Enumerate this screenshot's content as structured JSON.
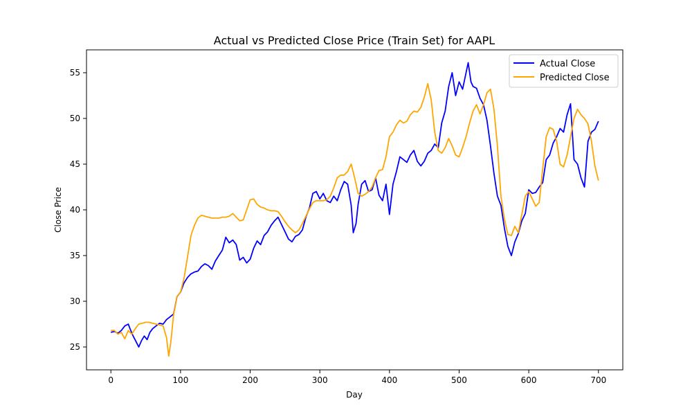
{
  "chart_data": {
    "type": "line",
    "title": "Actual vs Predicted Close Price (Train Set) for AAPL",
    "xlabel": "Day",
    "ylabel": "Close Price",
    "xlim": [
      -35,
      735
    ],
    "ylim": [
      22.5,
      57.5
    ],
    "x_ticks": [
      0,
      100,
      200,
      300,
      400,
      500,
      600,
      700
    ],
    "y_ticks": [
      25,
      30,
      35,
      40,
      45,
      50,
      55
    ],
    "grid": false,
    "legend_position": "top-right",
    "series": [
      {
        "name": "Actual Close",
        "color": "#0000ff",
        "points": [
          [
            0,
            26.6
          ],
          [
            5,
            26.7
          ],
          [
            10,
            26.5
          ],
          [
            15,
            26.8
          ],
          [
            20,
            27.3
          ],
          [
            25,
            27.5
          ],
          [
            28,
            26.9
          ],
          [
            32,
            26.2
          ],
          [
            36,
            25.6
          ],
          [
            40,
            25.0
          ],
          [
            44,
            25.7
          ],
          [
            48,
            26.2
          ],
          [
            52,
            25.8
          ],
          [
            56,
            26.6
          ],
          [
            60,
            27.0
          ],
          [
            65,
            27.3
          ],
          [
            70,
            27.6
          ],
          [
            75,
            27.5
          ],
          [
            80,
            28.0
          ],
          [
            85,
            28.3
          ],
          [
            90,
            28.6
          ],
          [
            95,
            30.5
          ],
          [
            100,
            31.0
          ],
          [
            105,
            32.0
          ],
          [
            110,
            32.6
          ],
          [
            115,
            33.0
          ],
          [
            120,
            33.2
          ],
          [
            125,
            33.3
          ],
          [
            130,
            33.8
          ],
          [
            135,
            34.1
          ],
          [
            140,
            33.9
          ],
          [
            145,
            33.5
          ],
          [
            150,
            34.4
          ],
          [
            155,
            35.0
          ],
          [
            160,
            35.6
          ],
          [
            165,
            37.0
          ],
          [
            170,
            36.4
          ],
          [
            175,
            36.7
          ],
          [
            180,
            36.2
          ],
          [
            185,
            34.5
          ],
          [
            190,
            34.8
          ],
          [
            195,
            34.2
          ],
          [
            200,
            34.6
          ],
          [
            205,
            35.8
          ],
          [
            210,
            36.6
          ],
          [
            215,
            36.2
          ],
          [
            220,
            37.2
          ],
          [
            225,
            37.6
          ],
          [
            230,
            38.3
          ],
          [
            235,
            38.8
          ],
          [
            240,
            39.2
          ],
          [
            245,
            38.4
          ],
          [
            250,
            37.6
          ],
          [
            255,
            36.8
          ],
          [
            260,
            36.5
          ],
          [
            265,
            37.1
          ],
          [
            270,
            37.3
          ],
          [
            275,
            37.8
          ],
          [
            280,
            39.2
          ],
          [
            285,
            40.2
          ],
          [
            290,
            41.8
          ],
          [
            295,
            42.0
          ],
          [
            300,
            41.2
          ],
          [
            305,
            41.8
          ],
          [
            310,
            41.0
          ],
          [
            315,
            40.8
          ],
          [
            320,
            41.5
          ],
          [
            325,
            41.0
          ],
          [
            330,
            42.2
          ],
          [
            335,
            43.1
          ],
          [
            340,
            42.8
          ],
          [
            345,
            40.5
          ],
          [
            348,
            37.5
          ],
          [
            352,
            38.5
          ],
          [
            355,
            40.6
          ],
          [
            360,
            42.8
          ],
          [
            365,
            43.2
          ],
          [
            370,
            42.0
          ],
          [
            375,
            42.2
          ],
          [
            380,
            43.5
          ],
          [
            385,
            41.6
          ],
          [
            390,
            41.0
          ],
          [
            395,
            42.8
          ],
          [
            400,
            39.5
          ],
          [
            405,
            42.8
          ],
          [
            410,
            44.2
          ],
          [
            415,
            45.8
          ],
          [
            420,
            45.5
          ],
          [
            425,
            45.2
          ],
          [
            430,
            46.0
          ],
          [
            435,
            46.5
          ],
          [
            440,
            45.3
          ],
          [
            445,
            44.8
          ],
          [
            450,
            45.3
          ],
          [
            455,
            46.2
          ],
          [
            460,
            46.5
          ],
          [
            465,
            47.2
          ],
          [
            470,
            46.8
          ],
          [
            475,
            49.5
          ],
          [
            480,
            50.8
          ],
          [
            485,
            53.5
          ],
          [
            490,
            55.0
          ],
          [
            495,
            52.5
          ],
          [
            500,
            54.0
          ],
          [
            505,
            53.2
          ],
          [
            510,
            55.0
          ],
          [
            513,
            56.1
          ],
          [
            517,
            54.0
          ],
          [
            520,
            53.5
          ],
          [
            525,
            53.3
          ],
          [
            530,
            52.2
          ],
          [
            535,
            51.5
          ],
          [
            540,
            49.8
          ],
          [
            545,
            47.0
          ],
          [
            550,
            44.0
          ],
          [
            555,
            41.5
          ],
          [
            560,
            40.5
          ],
          [
            565,
            38.0
          ],
          [
            570,
            36.0
          ],
          [
            575,
            35.0
          ],
          [
            580,
            36.5
          ],
          [
            585,
            37.4
          ],
          [
            590,
            38.8
          ],
          [
            595,
            39.6
          ],
          [
            600,
            42.2
          ],
          [
            605,
            41.8
          ],
          [
            610,
            41.9
          ],
          [
            615,
            42.5
          ],
          [
            620,
            43.0
          ],
          [
            625,
            45.5
          ],
          [
            630,
            46.0
          ],
          [
            635,
            47.3
          ],
          [
            640,
            48.0
          ],
          [
            645,
            48.9
          ],
          [
            650,
            48.5
          ],
          [
            655,
            50.4
          ],
          [
            660,
            51.6
          ],
          [
            665,
            45.5
          ],
          [
            670,
            45.0
          ],
          [
            675,
            43.5
          ],
          [
            680,
            42.5
          ],
          [
            685,
            47.5
          ],
          [
            690,
            48.5
          ],
          [
            695,
            48.8
          ],
          [
            700,
            49.7
          ]
        ]
      },
      {
        "name": "Predicted Close",
        "color": "#ffa500",
        "points": [
          [
            0,
            26.8
          ],
          [
            5,
            26.8
          ],
          [
            10,
            26.4
          ],
          [
            15,
            26.6
          ],
          [
            20,
            25.9
          ],
          [
            25,
            26.8
          ],
          [
            30,
            26.4
          ],
          [
            35,
            27.0
          ],
          [
            40,
            27.5
          ],
          [
            45,
            27.6
          ],
          [
            50,
            27.7
          ],
          [
            55,
            27.7
          ],
          [
            60,
            27.6
          ],
          [
            65,
            27.5
          ],
          [
            70,
            27.4
          ],
          [
            75,
            27.3
          ],
          [
            80,
            26.0
          ],
          [
            83,
            24.0
          ],
          [
            86,
            25.5
          ],
          [
            90,
            28.5
          ],
          [
            95,
            30.5
          ],
          [
            100,
            31.0
          ],
          [
            105,
            32.5
          ],
          [
            110,
            34.8
          ],
          [
            115,
            37.2
          ],
          [
            120,
            38.3
          ],
          [
            125,
            39.1
          ],
          [
            130,
            39.4
          ],
          [
            135,
            39.3
          ],
          [
            140,
            39.2
          ],
          [
            145,
            39.1
          ],
          [
            150,
            39.1
          ],
          [
            155,
            39.1
          ],
          [
            160,
            39.2
          ],
          [
            165,
            39.2
          ],
          [
            170,
            39.3
          ],
          [
            175,
            39.6
          ],
          [
            180,
            39.2
          ],
          [
            185,
            38.8
          ],
          [
            190,
            38.9
          ],
          [
            195,
            40.0
          ],
          [
            200,
            41.1
          ],
          [
            205,
            41.2
          ],
          [
            210,
            40.6
          ],
          [
            215,
            40.3
          ],
          [
            220,
            40.2
          ],
          [
            225,
            40.0
          ],
          [
            230,
            39.9
          ],
          [
            235,
            39.9
          ],
          [
            240,
            39.8
          ],
          [
            245,
            39.3
          ],
          [
            250,
            38.7
          ],
          [
            255,
            38.2
          ],
          [
            260,
            37.8
          ],
          [
            265,
            37.5
          ],
          [
            270,
            37.8
          ],
          [
            275,
            38.5
          ],
          [
            280,
            39.3
          ],
          [
            285,
            40.1
          ],
          [
            290,
            40.8
          ],
          [
            295,
            41.0
          ],
          [
            300,
            41.0
          ],
          [
            305,
            41.0
          ],
          [
            310,
            41.1
          ],
          [
            315,
            41.5
          ],
          [
            320,
            42.4
          ],
          [
            325,
            43.5
          ],
          [
            330,
            43.8
          ],
          [
            335,
            43.8
          ],
          [
            340,
            44.2
          ],
          [
            345,
            45.0
          ],
          [
            350,
            43.5
          ],
          [
            355,
            41.8
          ],
          [
            360,
            41.5
          ],
          [
            365,
            41.7
          ],
          [
            370,
            42.0
          ],
          [
            375,
            42.5
          ],
          [
            380,
            43.5
          ],
          [
            385,
            44.3
          ],
          [
            390,
            44.4
          ],
          [
            395,
            45.8
          ],
          [
            400,
            48.0
          ],
          [
            405,
            48.5
          ],
          [
            410,
            49.3
          ],
          [
            415,
            49.8
          ],
          [
            420,
            49.5
          ],
          [
            425,
            49.7
          ],
          [
            430,
            50.4
          ],
          [
            435,
            50.8
          ],
          [
            440,
            50.7
          ],
          [
            445,
            51.2
          ],
          [
            450,
            52.3
          ],
          [
            455,
            53.8
          ],
          [
            460,
            52.0
          ],
          [
            465,
            48.5
          ],
          [
            470,
            46.5
          ],
          [
            475,
            46.2
          ],
          [
            480,
            46.8
          ],
          [
            485,
            47.8
          ],
          [
            490,
            47.0
          ],
          [
            495,
            46.0
          ],
          [
            500,
            45.8
          ],
          [
            505,
            46.8
          ],
          [
            510,
            48.0
          ],
          [
            515,
            49.5
          ],
          [
            520,
            50.8
          ],
          [
            525,
            51.5
          ],
          [
            530,
            50.5
          ],
          [
            535,
            51.5
          ],
          [
            540,
            52.8
          ],
          [
            545,
            53.2
          ],
          [
            550,
            51.0
          ],
          [
            555,
            47.0
          ],
          [
            560,
            41.5
          ],
          [
            565,
            39.0
          ],
          [
            570,
            37.3
          ],
          [
            575,
            37.2
          ],
          [
            580,
            38.2
          ],
          [
            585,
            37.5
          ],
          [
            590,
            39.5
          ],
          [
            595,
            41.5
          ],
          [
            600,
            42.0
          ],
          [
            605,
            41.2
          ],
          [
            610,
            40.4
          ],
          [
            615,
            40.8
          ],
          [
            620,
            44.5
          ],
          [
            625,
            48.0
          ],
          [
            630,
            49.0
          ],
          [
            635,
            48.8
          ],
          [
            640,
            47.5
          ],
          [
            645,
            45.0
          ],
          [
            650,
            44.7
          ],
          [
            655,
            46.0
          ],
          [
            660,
            48.0
          ],
          [
            665,
            50.0
          ],
          [
            670,
            51.0
          ],
          [
            675,
            50.4
          ],
          [
            680,
            50.0
          ],
          [
            685,
            49.4
          ],
          [
            690,
            47.5
          ],
          [
            695,
            44.8
          ],
          [
            700,
            43.2
          ]
        ]
      }
    ]
  }
}
